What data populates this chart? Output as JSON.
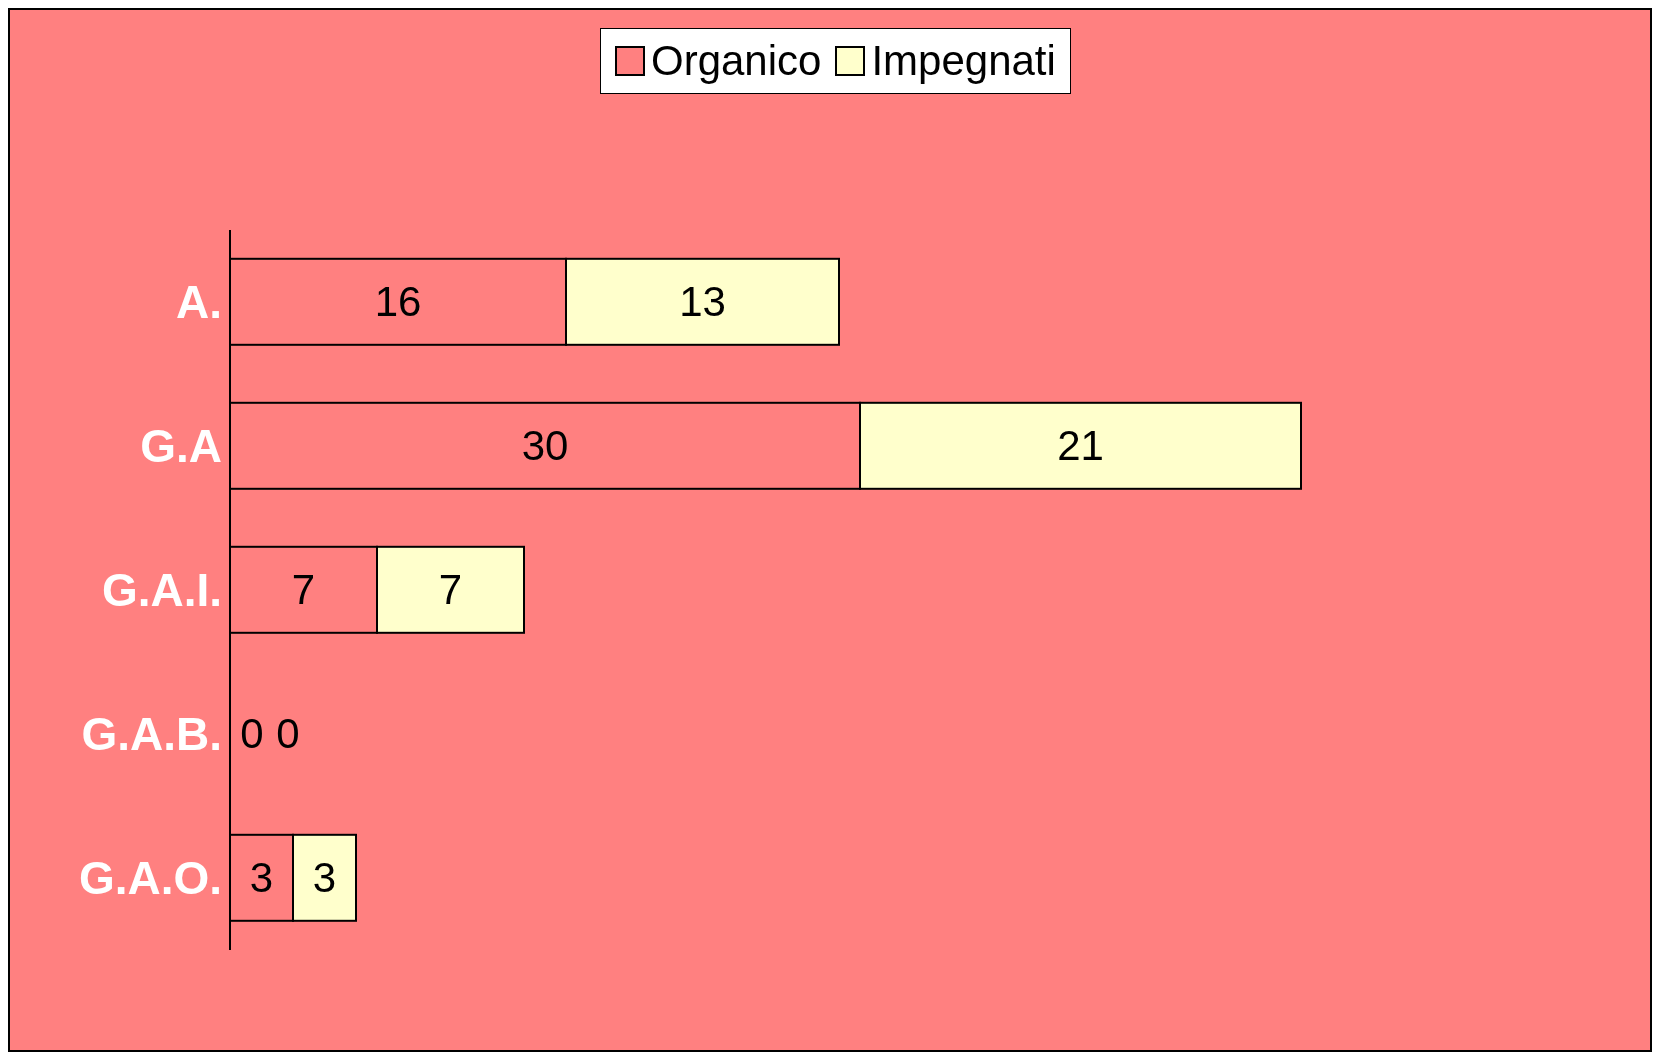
{
  "chart_data": {
    "type": "bar",
    "orientation": "horizontal",
    "stacked": true,
    "data_labels": true,
    "legend": "top",
    "categories": [
      "A.",
      "G.A",
      "G.A.I.",
      "G.A.B.",
      "G.A.O."
    ],
    "series": [
      {
        "name": "Organico",
        "color": "#ff8080",
        "values": [
          16,
          30,
          7,
          0,
          3
        ]
      },
      {
        "name": "Impegnati",
        "color": "#ffffcc",
        "values": [
          13,
          21,
          7,
          0,
          3
        ]
      }
    ]
  }
}
